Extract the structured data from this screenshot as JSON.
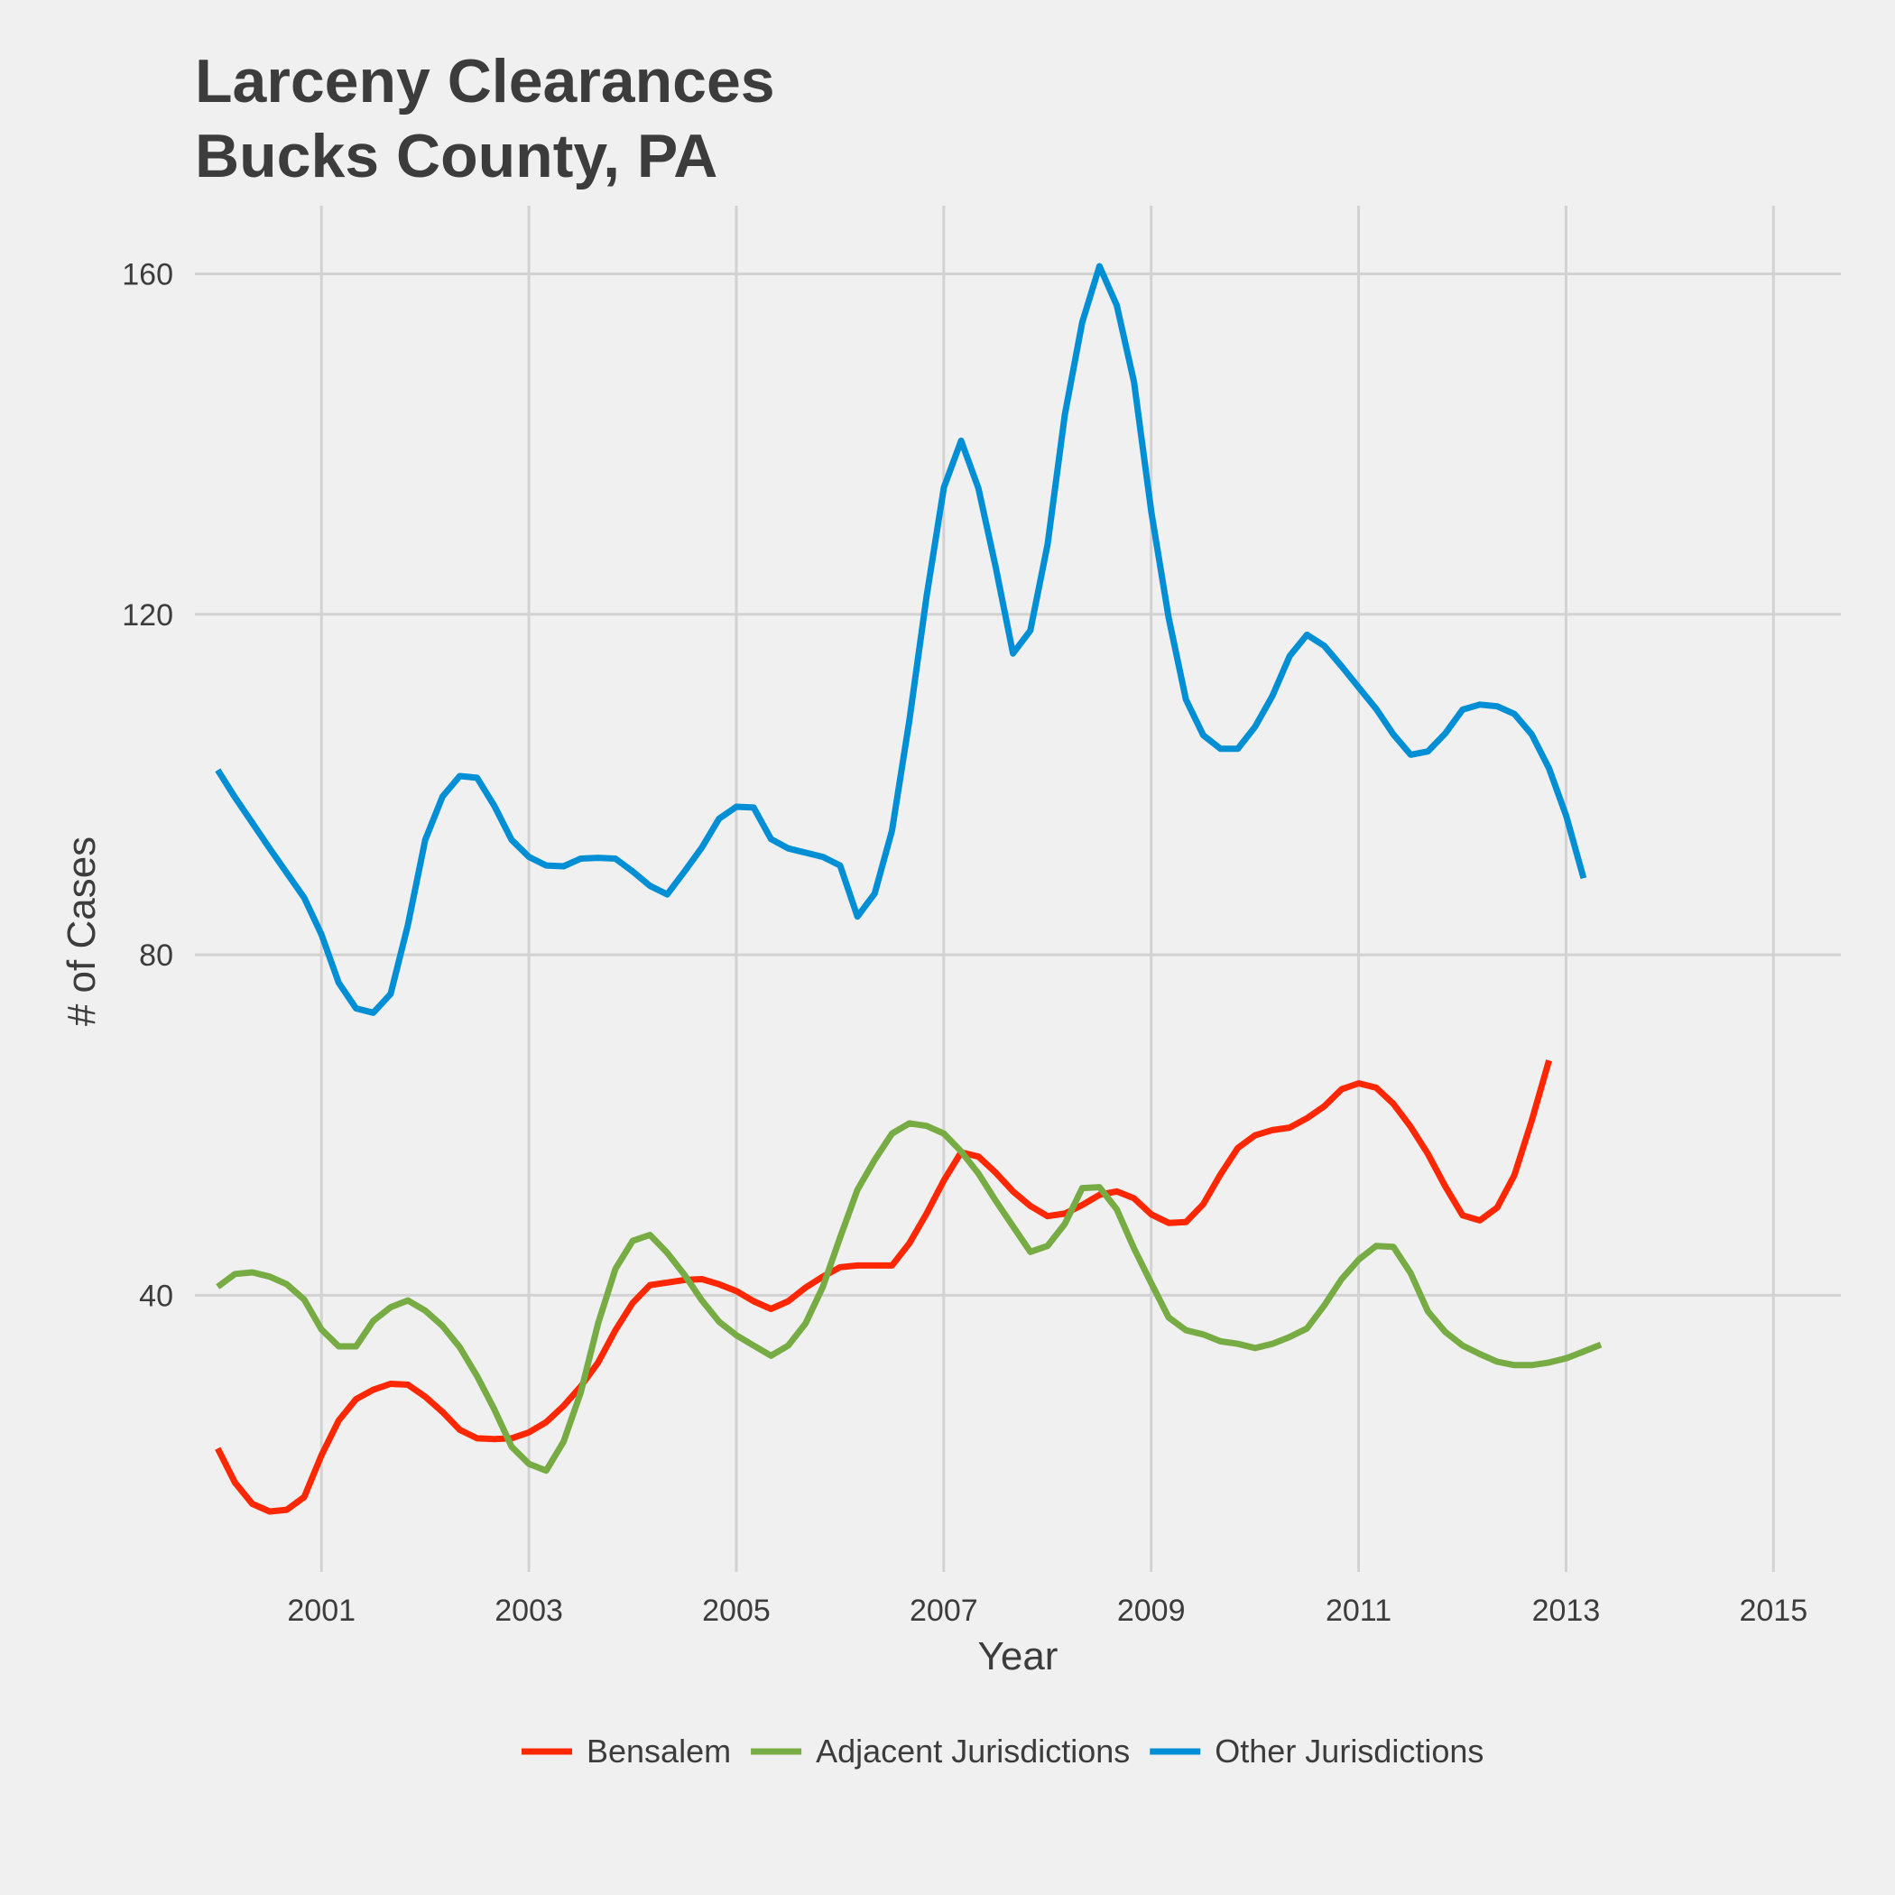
{
  "chart_data": {
    "type": "line",
    "title_lines": [
      "Larceny Clearances",
      "Bucks County, PA"
    ],
    "xlabel": "Year",
    "ylabel": "# of Cases",
    "x_ticks": [
      2001,
      2003,
      2005,
      2007,
      2009,
      2011,
      2013,
      2015
    ],
    "y_ticks": [
      40,
      80,
      120,
      160
    ],
    "xlim": [
      1999.78,
      2015.65
    ],
    "ylim": [
      7.5,
      168
    ],
    "grid": true,
    "legend_position": "bottom",
    "x_start": 2000.0,
    "x_step": 0.1667,
    "series": [
      {
        "name": "Bensalem",
        "color": "#ff2700",
        "values": [
          22,
          18,
          15.5,
          14.6,
          14.8,
          16.3,
          21.2,
          25.3,
          27.8,
          28.9,
          29.6,
          29.5,
          28.1,
          26.3,
          24.2,
          23.2,
          23.1,
          23.2,
          23.9,
          25.1,
          27,
          29.3,
          32.1,
          35.9,
          39.1,
          41.2,
          41.5,
          41.8,
          41.9,
          41.3,
          40.5,
          39.3,
          38.4,
          39.3,
          40.9,
          42.2,
          43.3,
          43.5,
          43.5,
          43.5,
          46.1,
          49.6,
          53.5,
          56.8,
          56.3,
          54.4,
          52.2,
          50.5,
          49.3,
          49.6,
          50.6,
          51.8,
          52.2,
          51.4,
          49.5,
          48.5,
          48.6,
          50.7,
          54.2,
          57.3,
          58.8,
          59.4,
          59.7,
          60.8,
          62.2,
          64.2,
          64.9,
          64.4,
          62.5,
          59.8,
          56.6,
          52.8,
          49.4,
          48.8,
          50.3,
          54.1,
          60.5,
          67.6
        ]
      },
      {
        "name": "Adjacent Jurisdictions",
        "color": "#77ab43",
        "values": [
          41,
          42.5,
          42.7,
          42.2,
          41.3,
          39.5,
          36,
          34,
          34,
          37,
          38.6,
          39.4,
          38.2,
          36.4,
          33.9,
          30.5,
          26.6,
          22.2,
          20.2,
          19.4,
          22.8,
          28.6,
          36.7,
          43.1,
          46.4,
          47.1,
          45,
          42.4,
          39.4,
          36.9,
          35.3,
          34.1,
          32.9,
          34.1,
          36.7,
          41,
          46.8,
          52.4,
          55.9,
          59,
          60.2,
          59.9,
          59,
          56.9,
          54.3,
          51.1,
          48.1,
          45.1,
          45.8,
          48.4,
          52.6,
          52.7,
          50.1,
          45.5,
          41.4,
          37.4,
          35.9,
          35.4,
          34.6,
          34.3,
          33.8,
          34.3,
          35.1,
          36.1,
          38.8,
          41.9,
          44.2,
          45.8,
          45.7,
          42.6,
          38.1,
          35.7,
          34.1,
          33.1,
          32.2,
          31.8,
          31.8,
          32.1,
          32.6,
          33.4,
          34.2
        ]
      },
      {
        "name": "Other Jurisdictions",
        "color": "#008fd5",
        "values": [
          101.7,
          98.5,
          95.5,
          92.5,
          89.6,
          86.7,
          82.4,
          76.7,
          73.7,
          73.2,
          75.4,
          83.5,
          93.5,
          98.6,
          101,
          100.8,
          97.5,
          93.5,
          91.5,
          90.5,
          90.4,
          91.3,
          91.4,
          91.3,
          89.8,
          88.1,
          87.1,
          89.8,
          92.6,
          96,
          97.4,
          97.3,
          93.6,
          92.5,
          92,
          91.5,
          90.5,
          84.5,
          87.2,
          94.6,
          107.5,
          122.1,
          134.9,
          140.4,
          134.8,
          125.5,
          115.4,
          118.1,
          128.2,
          143.5,
          154.3,
          160.9,
          156.3,
          147.3,
          132,
          119.6,
          110,
          105.8,
          104.2,
          104.2,
          106.8,
          110.4,
          115.1,
          117.6,
          116.3,
          113.9,
          111.4,
          108.9,
          105.9,
          103.5,
          103.9,
          106,
          108.8,
          109.4,
          109.2,
          108.3,
          105.9,
          101.9,
          96.3,
          89
        ]
      }
    ]
  }
}
